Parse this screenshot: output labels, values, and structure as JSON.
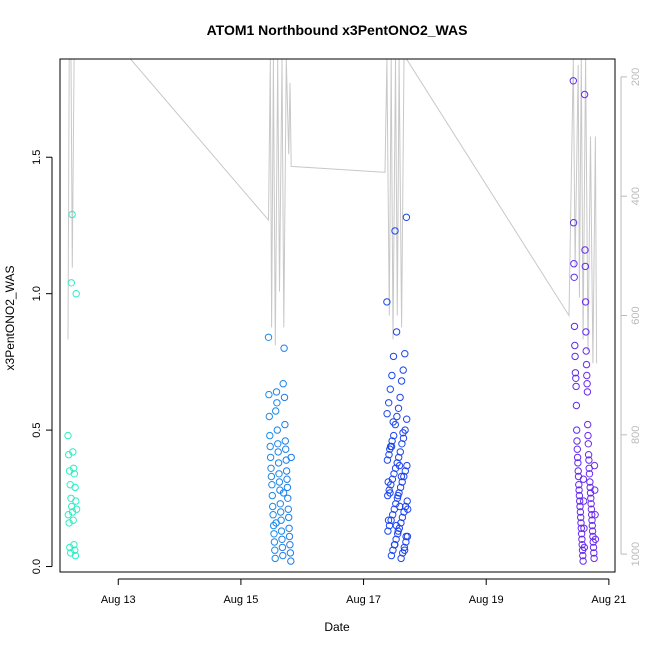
{
  "chart_data": {
    "type": "scatter",
    "title": "ATOM1 Northbound x3PentONO2_WAS",
    "xlabel": "Date",
    "ylabel": "x3PentONO2_WAS",
    "x_unit": "day of August 2016",
    "xlim": [
      12.05,
      21.1
    ],
    "ylim": [
      -0.02,
      1.86
    ],
    "x_ticks": [
      {
        "value": 13,
        "label": "Aug 13"
      },
      {
        "value": 15,
        "label": "Aug 15"
      },
      {
        "value": 17,
        "label": "Aug 17"
      },
      {
        "value": 19,
        "label": "Aug 19"
      },
      {
        "value": 21,
        "label": "Aug 21"
      }
    ],
    "y_ticks": [
      {
        "value": 0.0,
        "label": "0.0"
      },
      {
        "value": 0.5,
        "label": "0.5"
      },
      {
        "value": 1.0,
        "label": "1.0"
      },
      {
        "value": 1.5,
        "label": "1.5"
      }
    ],
    "secondary_y": {
      "reversed": true,
      "lim": [
        1030,
        170
      ],
      "ticks": [
        {
          "value": 200,
          "label": "200"
        },
        {
          "value": 400,
          "label": "400"
        },
        {
          "value": 600,
          "label": "600"
        },
        {
          "value": 800,
          "label": "800"
        },
        {
          "value": 1000,
          "label": "1000"
        }
      ],
      "line_color": "#c8c8c8"
    },
    "color_scale": [
      "#2ef2c0",
      "#1fc6e6",
      "#1a55ee",
      "#2030f0",
      "#7a2af0"
    ],
    "point_groups": [
      {
        "day_start": 12.18,
        "day_end": 12.32,
        "values": [
          0.48,
          0.42,
          0.41,
          0.36,
          0.35,
          0.34,
          0.3,
          0.29,
          0.25,
          0.24,
          0.22,
          0.21,
          0.2,
          0.19,
          0.17,
          0.16,
          0.08,
          0.07,
          0.06,
          0.05,
          0.04,
          1.04,
          1.0,
          1.29
        ]
      },
      {
        "day_start": 15.45,
        "day_end": 15.82,
        "values": [
          0.84,
          0.8,
          0.64,
          0.63,
          0.62,
          0.6,
          0.55,
          0.52,
          0.5,
          0.48,
          0.46,
          0.45,
          0.44,
          0.43,
          0.42,
          0.4,
          0.39,
          0.38,
          0.36,
          0.35,
          0.34,
          0.33,
          0.32,
          0.31,
          0.3,
          0.29,
          0.28,
          0.26,
          0.25,
          0.23,
          0.22,
          0.21,
          0.2,
          0.19,
          0.18,
          0.17,
          0.15,
          0.14,
          0.13,
          0.12,
          0.11,
          0.1,
          0.09,
          0.08,
          0.07,
          0.06,
          0.05,
          0.04,
          0.03,
          0.02,
          0.67,
          0.57,
          0.4,
          0.27,
          0.16
        ]
      },
      {
        "day_start": 17.38,
        "day_end": 17.72,
        "values": [
          0.97,
          0.86,
          1.28,
          1.23,
          0.78,
          0.77,
          0.72,
          0.7,
          0.68,
          0.65,
          0.62,
          0.6,
          0.58,
          0.56,
          0.55,
          0.54,
          0.52,
          0.5,
          0.48,
          0.47,
          0.46,
          0.45,
          0.44,
          0.42,
          0.41,
          0.4,
          0.39,
          0.38,
          0.37,
          0.36,
          0.35,
          0.34,
          0.33,
          0.32,
          0.31,
          0.3,
          0.29,
          0.28,
          0.27,
          0.26,
          0.25,
          0.24,
          0.23,
          0.22,
          0.21,
          0.2,
          0.19,
          0.18,
          0.17,
          0.16,
          0.15,
          0.14,
          0.13,
          0.12,
          0.11,
          0.1,
          0.09,
          0.08,
          0.07,
          0.06,
          0.05,
          0.04,
          0.03,
          0.43,
          0.37,
          0.31,
          0.26,
          0.21,
          0.15,
          0.11,
          0.08,
          0.06,
          0.53,
          0.49,
          0.44,
          0.33,
          0.27,
          0.22,
          0.17,
          0.13
        ]
      },
      {
        "day_start": 20.42,
        "day_end": 20.78,
        "values": [
          1.78,
          1.73,
          1.26,
          1.16,
          1.11,
          1.1,
          1.06,
          0.97,
          0.88,
          0.86,
          0.81,
          0.79,
          0.77,
          0.74,
          0.71,
          0.7,
          0.69,
          0.67,
          0.66,
          0.64,
          0.59,
          0.52,
          0.5,
          0.48,
          0.46,
          0.45,
          0.43,
          0.41,
          0.4,
          0.39,
          0.38,
          0.36,
          0.35,
          0.34,
          0.33,
          0.31,
          0.3,
          0.29,
          0.28,
          0.27,
          0.26,
          0.25,
          0.24,
          0.23,
          0.22,
          0.21,
          0.2,
          0.19,
          0.18,
          0.17,
          0.16,
          0.15,
          0.14,
          0.13,
          0.12,
          0.11,
          0.1,
          0.09,
          0.08,
          0.07,
          0.06,
          0.05,
          0.04,
          0.03,
          0.02,
          0.37,
          0.32,
          0.28,
          0.24,
          0.19,
          0.14,
          0.1,
          0.07
        ]
      }
    ],
    "pressure_trace": [
      [
        12.18,
        640
      ],
      [
        12.2,
        170
      ],
      [
        12.23,
        170
      ],
      [
        12.25,
        520
      ],
      [
        12.28,
        170
      ],
      [
        12.31,
        170
      ],
      [
        12.35,
        170
      ],
      [
        13.2,
        170
      ],
      [
        15.45,
        440
      ],
      [
        15.48,
        170
      ],
      [
        15.5,
        620
      ],
      [
        15.53,
        170
      ],
      [
        15.56,
        650
      ],
      [
        15.6,
        170
      ],
      [
        15.63,
        560
      ],
      [
        15.67,
        170
      ],
      [
        15.7,
        620
      ],
      [
        15.74,
        170
      ],
      [
        15.78,
        330
      ],
      [
        15.8,
        210
      ],
      [
        15.82,
        350
      ],
      [
        17.35,
        360
      ],
      [
        17.38,
        170
      ],
      [
        17.42,
        600
      ],
      [
        17.45,
        170
      ],
      [
        17.48,
        640
      ],
      [
        17.52,
        170
      ],
      [
        17.55,
        600
      ],
      [
        17.58,
        170
      ],
      [
        17.62,
        620
      ],
      [
        17.66,
        170
      ],
      [
        17.7,
        170
      ],
      [
        20.35,
        600
      ],
      [
        20.42,
        170
      ],
      [
        20.45,
        520
      ],
      [
        20.5,
        180
      ],
      [
        20.52,
        570
      ],
      [
        20.55,
        170
      ],
      [
        20.58,
        640
      ],
      [
        20.62,
        170
      ],
      [
        20.66,
        660
      ],
      [
        20.7,
        300
      ],
      [
        20.74,
        680
      ],
      [
        20.78,
        300
      ],
      [
        20.8,
        680
      ]
    ]
  }
}
